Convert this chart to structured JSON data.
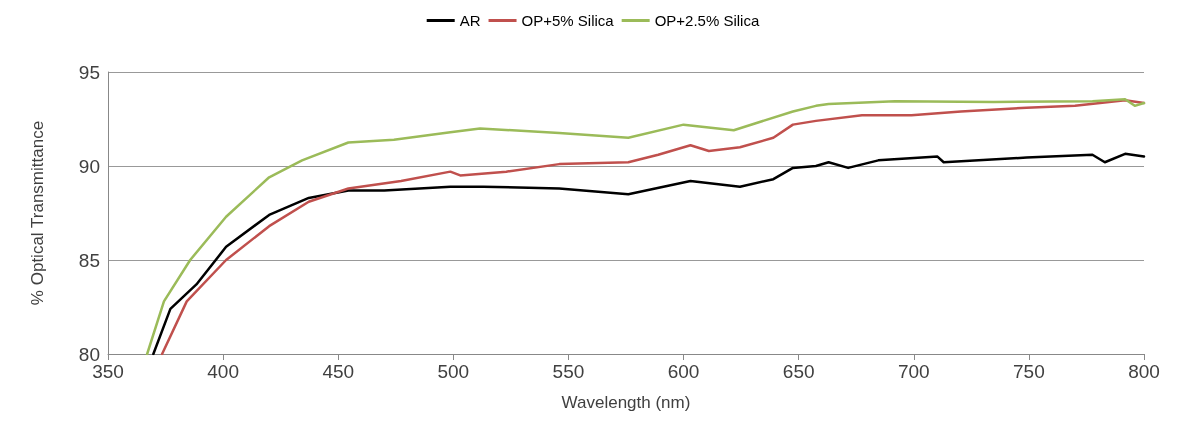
{
  "chart_data": {
    "type": "line",
    "xlabel": "Wavelength (nm)",
    "ylabel": "% Optical Transmittance",
    "xlim": [
      350,
      800
    ],
    "xticks": [
      350,
      400,
      450,
      500,
      550,
      600,
      650,
      700,
      750,
      800
    ],
    "ylim": [
      80,
      95
    ],
    "yticks": [
      80,
      85,
      90,
      95
    ],
    "grid": "y",
    "legend": "top",
    "marker": "none",
    "line_style": "solid",
    "series": [
      {
        "name": "AR",
        "color": "#000000",
        "x": [
          369.7,
          377.1,
          388.4,
          401.3,
          420,
          437.2,
          454.4,
          470,
          498.7,
          513,
          546,
          576,
          603,
          624.5,
          639,
          647.5,
          657.5,
          663,
          671.5,
          684.6,
          710.3,
          713,
          749,
          777.6,
          783,
          791.8,
          800
        ],
        "values": [
          80,
          82.4,
          83.7,
          85.7,
          87.4,
          88.3,
          88.7,
          88.7,
          88.9,
          88.9,
          88.8,
          88.5,
          89.2,
          88.9,
          89.3,
          89.9,
          90.0,
          90.2,
          89.9,
          90.3,
          90.5,
          90.2,
          90.45,
          90.6,
          90.2,
          90.65,
          90.5
        ]
      },
      {
        "name": "OP+5% Silica",
        "color": "#c0504d",
        "x": [
          373.5,
          384.2,
          401.3,
          420,
          437.2,
          454.4,
          477.3,
          498.7,
          503,
          523,
          546,
          576,
          589,
          603,
          611,
          624.5,
          639,
          647.5,
          657.5,
          677.5,
          699,
          720.5,
          749,
          770,
          791.8,
          800
        ],
        "values": [
          80,
          82.8,
          85.0,
          86.8,
          88.1,
          88.8,
          89.2,
          89.7,
          89.5,
          89.7,
          90.1,
          90.2,
          90.6,
          91.1,
          90.8,
          91.0,
          91.5,
          92.2,
          92.4,
          92.7,
          92.7,
          92.9,
          93.1,
          93.2,
          93.5,
          93.35
        ]
      },
      {
        "name": "OP+2.5% Silica",
        "color": "#9bbb59",
        "x": [
          367,
          374.3,
          385.7,
          401.3,
          420,
          434.3,
          454.4,
          474.2,
          498.7,
          511.6,
          546,
          576,
          600,
          621.8,
          647.5,
          657.5,
          663,
          691.8,
          734.7,
          777.6,
          791.8,
          796,
          800
        ],
        "values": [
          80,
          82.8,
          85.0,
          87.3,
          89.4,
          90.3,
          91.25,
          91.4,
          91.8,
          92.0,
          91.75,
          91.5,
          92.2,
          91.9,
          92.9,
          93.2,
          93.3,
          93.45,
          93.4,
          93.45,
          93.55,
          93.2,
          93.35
        ]
      }
    ]
  }
}
